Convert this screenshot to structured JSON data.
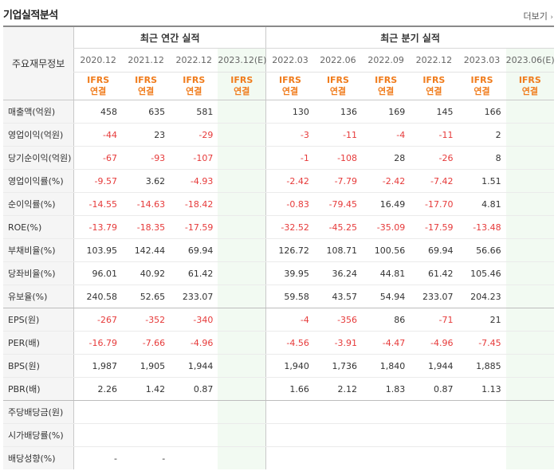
{
  "header": {
    "title": "기업실적분석",
    "more": "더보기"
  },
  "table": {
    "row_header": "주요재무정보",
    "annual_title": "최근 연간 실적",
    "quarter_title": "최근 분기 실적",
    "periods": [
      "2020.12",
      "2021.12",
      "2022.12",
      "2023.12(E)",
      "2022.03",
      "2022.06",
      "2022.09",
      "2022.12",
      "2023.03",
      "2023.06(E)"
    ],
    "ifrs_top": "IFRS",
    "ifrs_bottom": "연결",
    "rows": [
      {
        "label": "매출액(억원)",
        "values": [
          "458",
          "635",
          "581",
          "",
          "130",
          "136",
          "169",
          "145",
          "166",
          ""
        ]
      },
      {
        "label": "영업이익(억원)",
        "values": [
          "-44",
          "23",
          "-29",
          "",
          "-3",
          "-11",
          "-4",
          "-11",
          "2",
          ""
        ]
      },
      {
        "label": "당기순이익(억원)",
        "values": [
          "-67",
          "-93",
          "-107",
          "",
          "-1",
          "-108",
          "28",
          "-26",
          "8",
          ""
        ]
      },
      {
        "label": "영업이익률(%)",
        "values": [
          "-9.57",
          "3.62",
          "-4.93",
          "",
          "-2.42",
          "-7.79",
          "-2.42",
          "-7.42",
          "1.51",
          ""
        ]
      },
      {
        "label": "순이익률(%)",
        "values": [
          "-14.55",
          "-14.63",
          "-18.42",
          "",
          "-0.83",
          "-79.45",
          "16.49",
          "-17.70",
          "4.81",
          ""
        ]
      },
      {
        "label": "ROE(%)",
        "values": [
          "-13.79",
          "-18.35",
          "-17.59",
          "",
          "-32.52",
          "-45.25",
          "-35.09",
          "-17.59",
          "-13.48",
          ""
        ]
      },
      {
        "label": "부채비율(%)",
        "values": [
          "103.95",
          "142.44",
          "69.94",
          "",
          "126.72",
          "108.71",
          "100.56",
          "69.94",
          "56.66",
          ""
        ]
      },
      {
        "label": "당좌비율(%)",
        "values": [
          "96.01",
          "40.92",
          "61.42",
          "",
          "39.95",
          "36.24",
          "44.81",
          "61.42",
          "105.46",
          ""
        ]
      },
      {
        "label": "유보율(%)",
        "values": [
          "240.58",
          "52.65",
          "233.07",
          "",
          "59.58",
          "43.57",
          "54.94",
          "233.07",
          "204.23",
          ""
        ],
        "group_end": true
      },
      {
        "label": "EPS(원)",
        "values": [
          "-267",
          "-352",
          "-340",
          "",
          "-4",
          "-356",
          "86",
          "-71",
          "21",
          ""
        ]
      },
      {
        "label": "PER(배)",
        "values": [
          "-16.79",
          "-7.66",
          "-4.96",
          "",
          "-4.56",
          "-3.91",
          "-4.47",
          "-4.96",
          "-7.45",
          ""
        ]
      },
      {
        "label": "BPS(원)",
        "values": [
          "1,987",
          "1,905",
          "1,944",
          "",
          "1,940",
          "1,736",
          "1,840",
          "1,944",
          "1,885",
          ""
        ]
      },
      {
        "label": "PBR(배)",
        "values": [
          "2.26",
          "1.42",
          "0.87",
          "",
          "1.66",
          "2.12",
          "1.83",
          "0.87",
          "1.13",
          ""
        ],
        "group_end": true
      },
      {
        "label": "주당배당금(원)",
        "values": [
          "",
          "",
          "",
          "",
          "",
          "",
          "",
          "",
          "",
          ""
        ]
      },
      {
        "label": "시가배당률(%)",
        "values": [
          "",
          "",
          "",
          "",
          "",
          "",
          "",
          "",
          "",
          ""
        ]
      },
      {
        "label": "배당성향(%)",
        "values": [
          "-",
          "-",
          "",
          "",
          "",
          "",
          "",
          "",
          "",
          ""
        ]
      }
    ]
  },
  "colors": {
    "negative": "#e63a3a",
    "ifrs": "#f07c1c",
    "estimate_bg": "#f2faf2"
  }
}
